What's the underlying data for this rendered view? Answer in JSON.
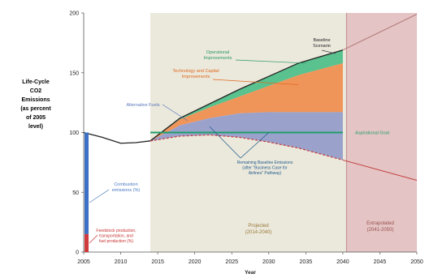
{
  "chart_data": {
    "type": "area",
    "ylabel_lines": [
      "Life-Cycle",
      "CO2",
      "Emissions",
      "(as percent",
      "of 2005",
      "level)"
    ],
    "xlabel": "Year",
    "xlim": [
      2005,
      2050
    ],
    "ylim": [
      0,
      200
    ],
    "xticks": [
      "2005",
      "2010",
      "2015",
      "2020",
      "2025",
      "2030",
      "2035",
      "2040",
      "2045",
      "2050"
    ],
    "yticks": [
      "0",
      "50",
      "100",
      "150",
      "200"
    ],
    "regions": [
      {
        "name": "projected",
        "label": "Projected (2014-2040)",
        "from": 2014,
        "to": 2040.5,
        "color": "#ebe8dc"
      },
      {
        "name": "extrapolated",
        "label": "Extrapolated (2041-2050)",
        "from": 2040.5,
        "to": 2050,
        "color": "#e4c4c4"
      }
    ],
    "history": {
      "x": [
        2005,
        2007.5,
        2010,
        2012,
        2014
      ],
      "y": [
        100,
        96,
        91,
        91.5,
        93
      ]
    },
    "baseline_extrapolation": {
      "x": [
        2040,
        2050
      ],
      "y": [
        169,
        199
      ]
    },
    "lower_dashed_extrapolation": {
      "x": [
        2040,
        2050
      ],
      "y": [
        77,
        60
      ]
    },
    "bands": {
      "x": [
        2014,
        2018,
        2022,
        2026,
        2030,
        2034,
        2040
      ],
      "baseline": [
        93,
        112,
        124,
        136,
        147,
        158,
        169
      ],
      "upper_orange": [
        93,
        111,
        121,
        130,
        139,
        148,
        158
      ],
      "upper_blue": [
        93,
        106,
        112,
        116,
        117,
        117,
        117
      ],
      "dashed": [
        93,
        97,
        98,
        96,
        92,
        87,
        77
      ]
    },
    "colors": {
      "green": "#59c28e",
      "orange": "#f0955a",
      "blue": "#9aa2cc",
      "target": "#1f9e6a",
      "bar_blue": "#3c70c4",
      "bar_red": "#cf3a3a",
      "dashed": "#c33a3a"
    },
    "stacked_bar": {
      "x": 2005,
      "total": 100,
      "red_portion": 15
    },
    "target_line": {
      "y": 100,
      "from": 2014,
      "to": 2040
    },
    "annotations": {
      "baseline_scenario": [
        "Baseline",
        "Scenario"
      ],
      "operational_improvements": [
        "Operational",
        "Improvements"
      ],
      "technology_biofuel": [
        "Technology and Capital",
        "Improvements"
      ],
      "alternative_fuels": "Alternative Fuels",
      "aspirational_goal": "Aspirational Goal",
      "remaining_gap": [
        "Remaining Baseline Emissions",
        "(after \"Business Case for",
        "Airlines\" Pathway)"
      ],
      "combustion_emissions": [
        "Combustion",
        "emissions (%)"
      ],
      "feedstock_emissions": [
        "Feedstock production,",
        "transportation, and",
        "fuel production (%)"
      ],
      "projected_label": [
        "Projected",
        "(2014-2040)"
      ],
      "extrapolated_label": [
        "Extrapolated",
        "(2041-2050)"
      ]
    }
  }
}
